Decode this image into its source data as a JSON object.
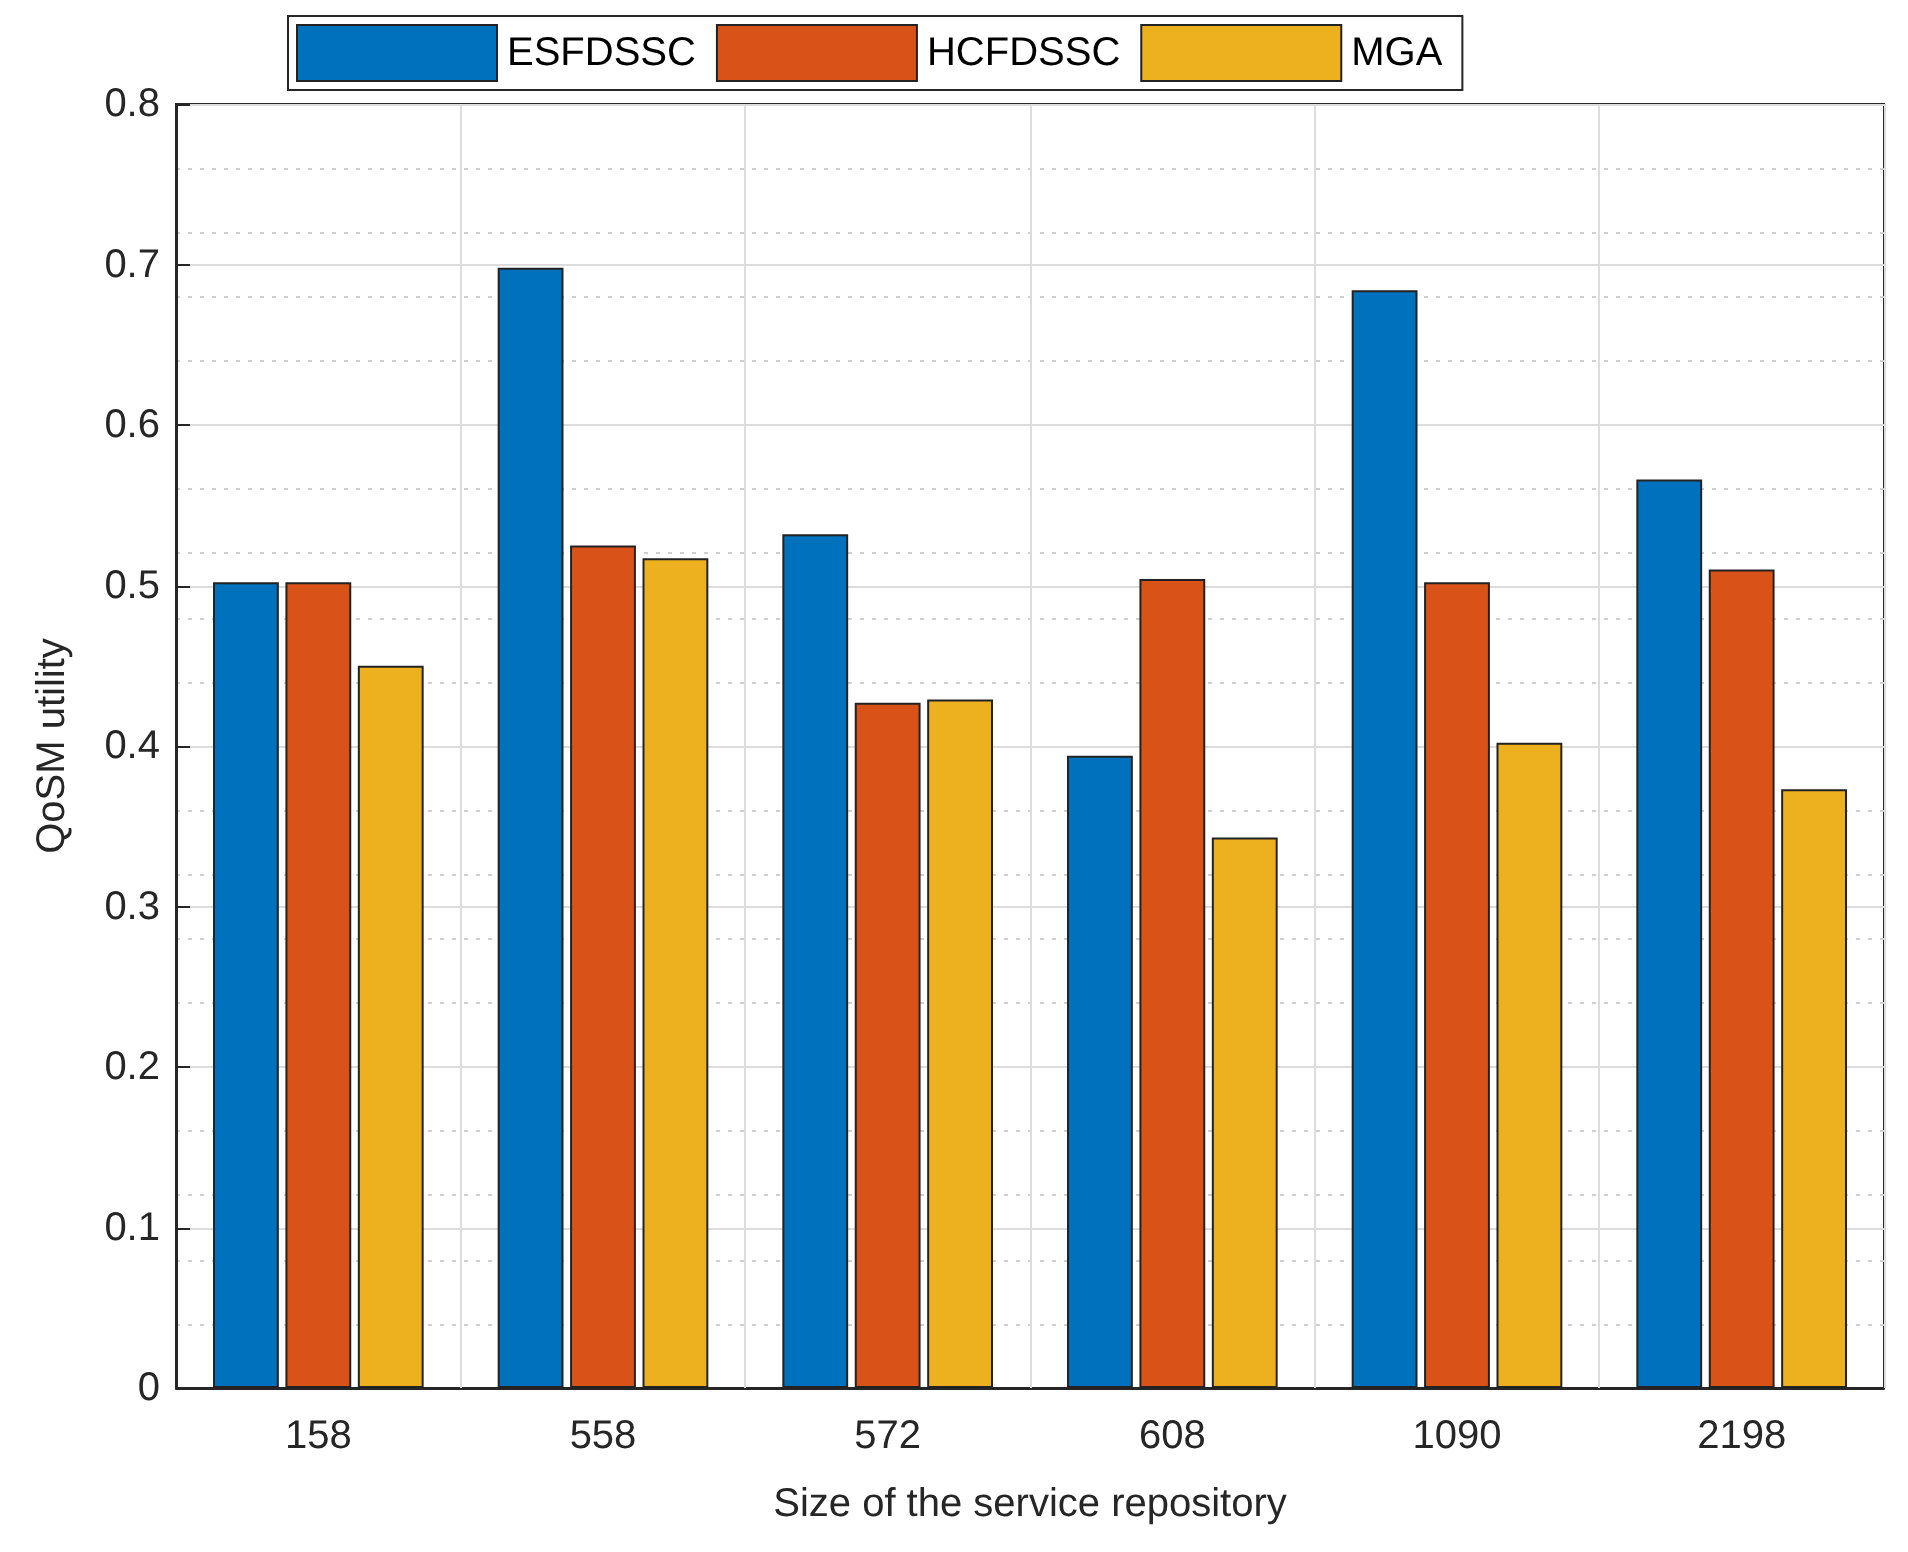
{
  "chart_data": {
    "type": "bar",
    "xlabel": "Size of the service repository",
    "ylabel": "QoSM utility",
    "categories": [
      "158",
      "558",
      "572",
      "608",
      "1090",
      "2198"
    ],
    "series": [
      {
        "name": "ESFDSSC",
        "color": "#0072bd",
        "values": [
          0.502,
          0.698,
          0.532,
          0.394,
          0.684,
          0.566
        ]
      },
      {
        "name": "HCFDSSC",
        "color": "#d95319",
        "values": [
          0.502,
          0.525,
          0.427,
          0.504,
          0.502,
          0.51
        ]
      },
      {
        "name": "MGA",
        "color": "#edb120",
        "values": [
          0.45,
          0.517,
          0.429,
          0.343,
          0.402,
          0.373
        ]
      }
    ],
    "ylim": [
      0,
      0.8
    ],
    "yticks": [
      0,
      0.1,
      0.2,
      0.3,
      0.4,
      0.5,
      0.6,
      0.7,
      0.8
    ],
    "grid": true,
    "legend": "top"
  }
}
